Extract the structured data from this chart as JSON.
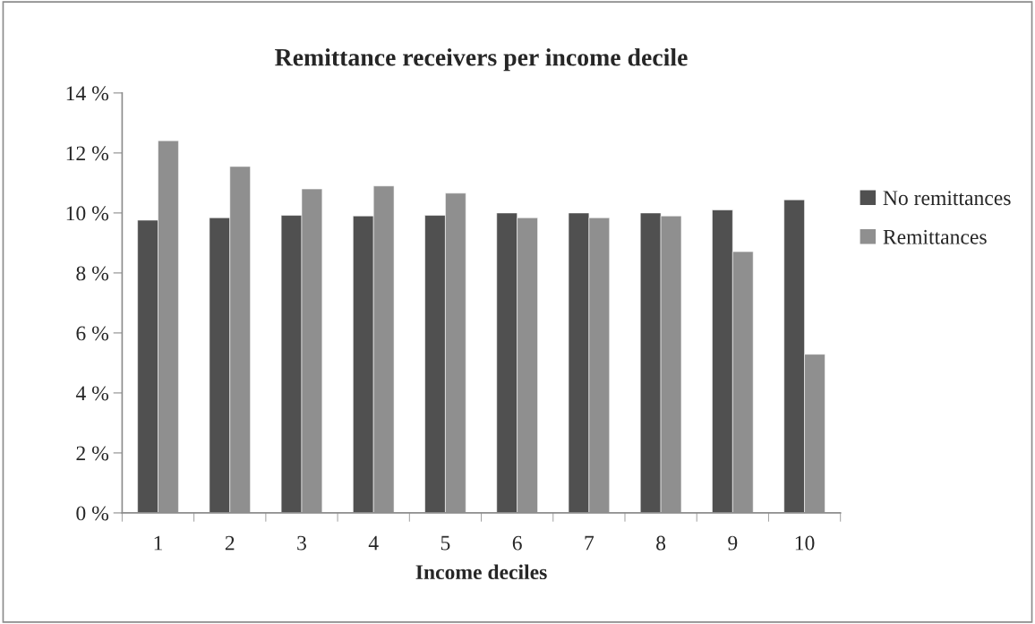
{
  "chart_data": {
    "type": "bar",
    "title": "Remittance receivers per income decile",
    "xlabel": "Income deciles",
    "categories": [
      "1",
      "2",
      "3",
      "4",
      "5",
      "6",
      "7",
      "8",
      "9",
      "10"
    ],
    "series": [
      {
        "name": "No remittances",
        "color": "#505050",
        "values": [
          9.76,
          9.84,
          9.92,
          9.9,
          9.92,
          10.0,
          10.0,
          10.0,
          10.1,
          10.44
        ]
      },
      {
        "name": "Remittances",
        "color": "#8f8f8f",
        "values": [
          12.41,
          11.55,
          10.8,
          10.9,
          10.66,
          9.84,
          9.84,
          9.9,
          8.71,
          5.29
        ]
      }
    ],
    "ylim": [
      0,
      14
    ],
    "yticks": [
      {
        "value": 0,
        "label": "0 %"
      },
      {
        "value": 2,
        "label": "2 %"
      },
      {
        "value": 4,
        "label": "4 %"
      },
      {
        "value": 6,
        "label": "6 %"
      },
      {
        "value": 8,
        "label": "8 %"
      },
      {
        "value": 10,
        "label": "10 %"
      },
      {
        "value": 12,
        "label": "12 %"
      },
      {
        "value": 14,
        "label": "14 %"
      }
    ],
    "grid": false,
    "legend": "right"
  }
}
